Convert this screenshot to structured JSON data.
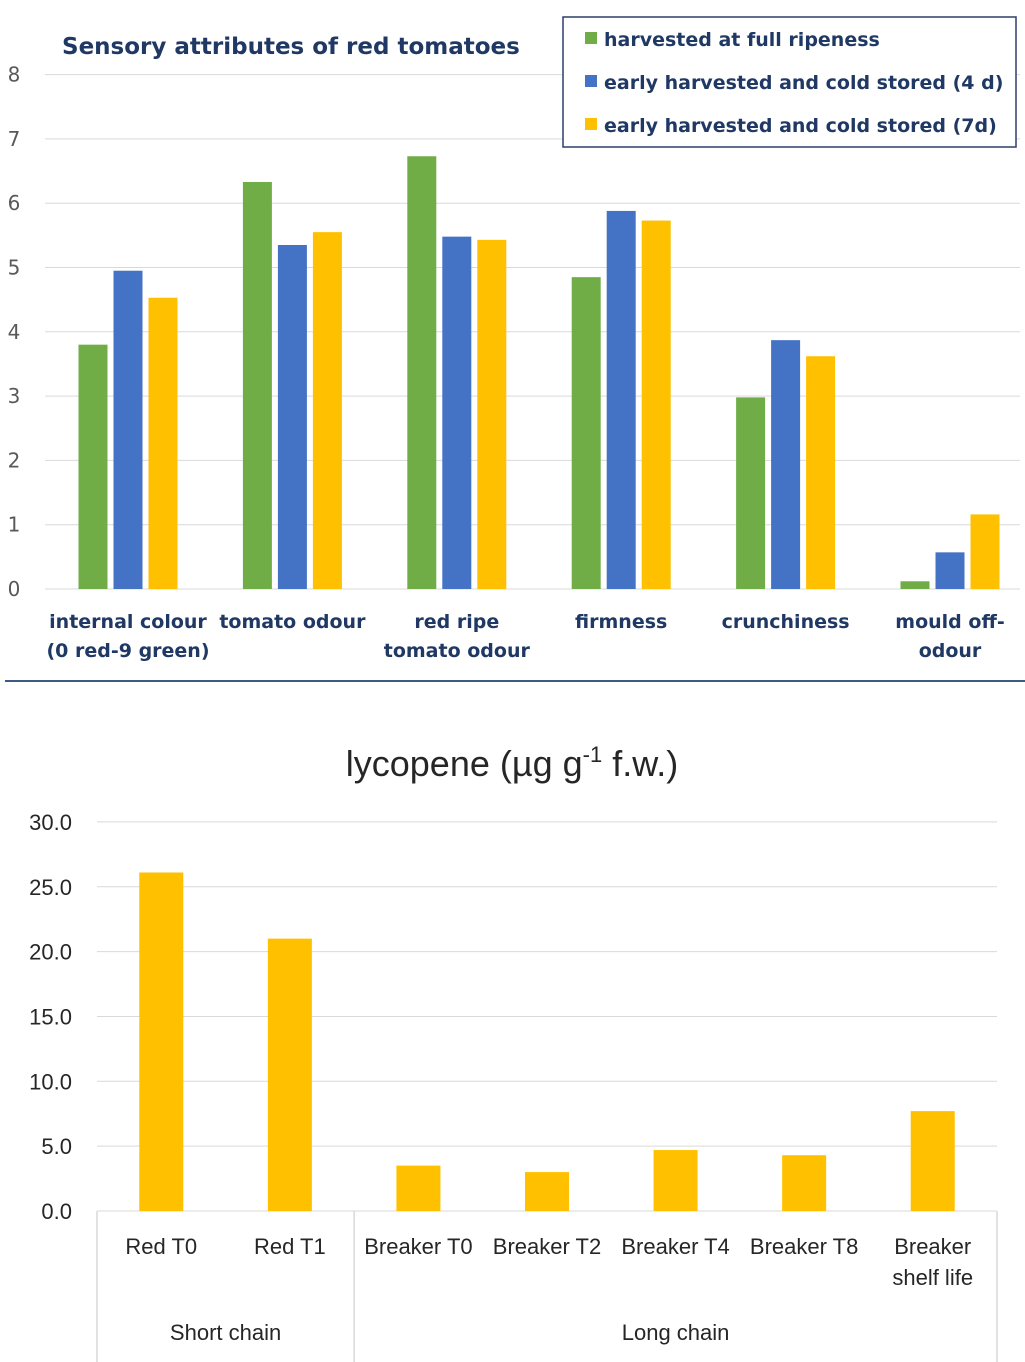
{
  "chart_data": [
    {
      "type": "bar",
      "title": "Sensory attributes of red tomatoes",
      "categories": [
        [
          "internal colour",
          "(0 red-9 green)"
        ],
        [
          "tomato odour"
        ],
        [
          "red ripe",
          "tomato odour"
        ],
        [
          "firmness"
        ],
        [
          "crunchiness"
        ],
        [
          "mould off-",
          "odour"
        ]
      ],
      "series": [
        {
          "name": "harvested at full ripeness",
          "color": "#70ad47",
          "values": [
            3.8,
            6.33,
            6.73,
            4.85,
            2.98,
            0.12
          ]
        },
        {
          "name": "early harvested and cold stored (4 d)",
          "color": "#4472c4",
          "values": [
            4.95,
            5.35,
            5.48,
            5.88,
            3.87,
            0.57
          ]
        },
        {
          "name": "early harvested and cold stored (7d)",
          "color": "#ffc000",
          "values": [
            4.53,
            5.55,
            5.43,
            5.73,
            3.62,
            1.16
          ]
        }
      ],
      "ylim": [
        0,
        8
      ],
      "yticks": [
        "0",
        "1",
        "2",
        "3",
        "4",
        "5",
        "6",
        "7",
        "8"
      ],
      "grid": true,
      "legend": "top-right"
    },
    {
      "type": "bar",
      "title": "lycopene (µg g",
      "title_sup": "-1",
      "title_tail": " f.w.)",
      "categories": [
        [
          "Red T0"
        ],
        [
          "Red T1"
        ],
        [
          "Breaker T0"
        ],
        [
          "Breaker T2"
        ],
        [
          "Breaker T4"
        ],
        [
          "Breaker T8"
        ],
        [
          "Breaker",
          "shelf life"
        ]
      ],
      "groups": [
        {
          "label": "Short chain",
          "span": 2
        },
        {
          "label": "Long chain",
          "span": 5
        }
      ],
      "series": [
        {
          "color": "#ffc000",
          "values": [
            26.1,
            21.0,
            3.5,
            3.0,
            4.7,
            4.3,
            7.7
          ]
        }
      ],
      "ylim": [
        0,
        30
      ],
      "yticks": [
        "0.0",
        "5.0",
        "10.0",
        "15.0",
        "20.0",
        "25.0",
        "30.0"
      ],
      "grid": true
    }
  ]
}
